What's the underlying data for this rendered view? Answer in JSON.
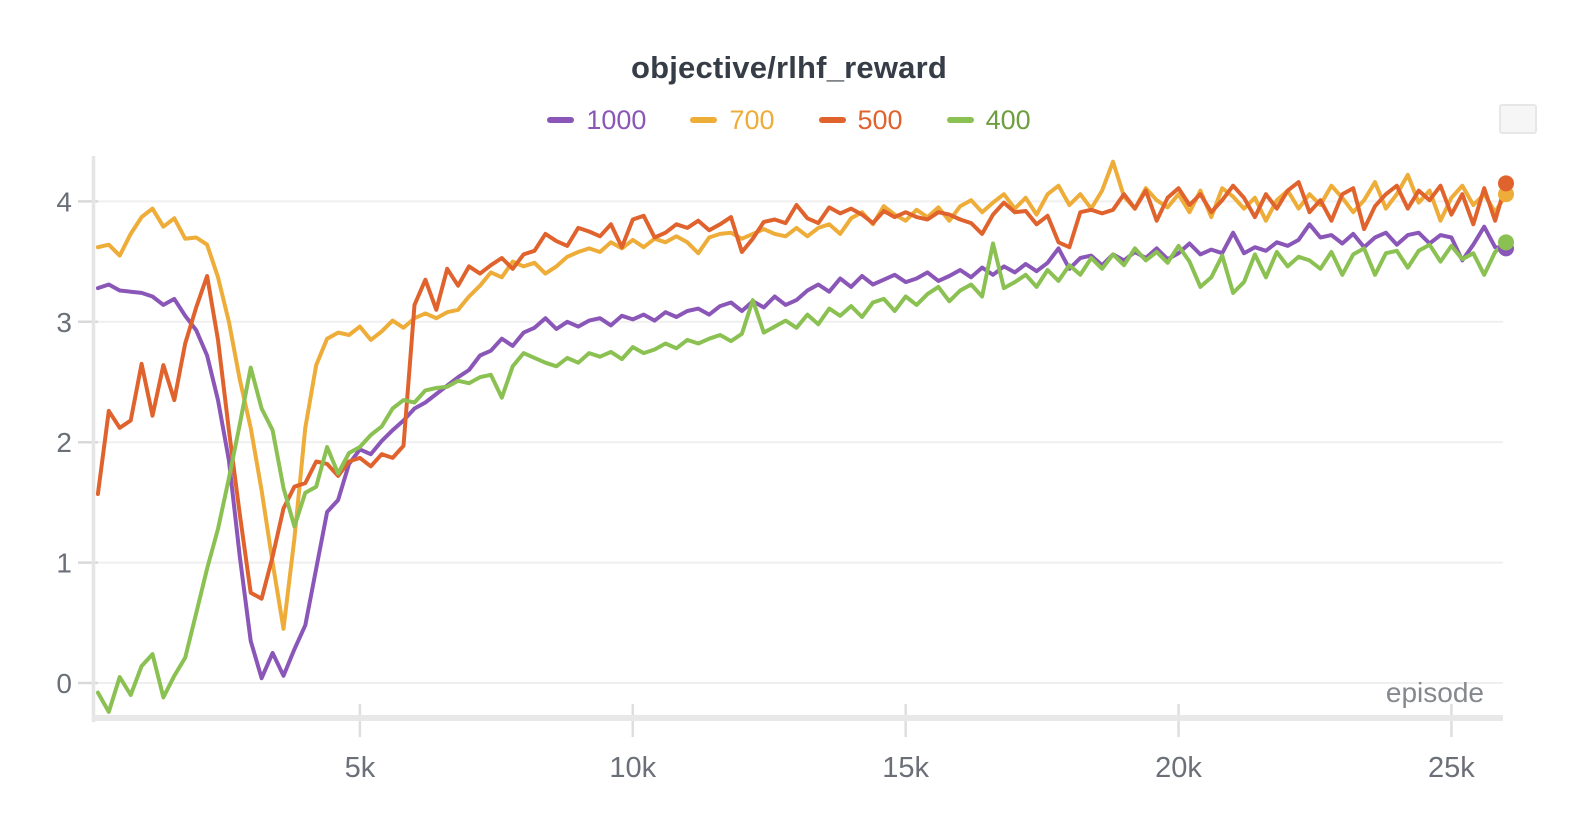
{
  "chart_data": {
    "type": "line",
    "title": "objective/rlhf_reward",
    "xlabel": "episode",
    "ylabel": "",
    "grid": true,
    "legend_position": "top-center",
    "x_axis": {
      "range": [
        0,
        26000
      ],
      "ticks": [
        {
          "value": 5000,
          "label": "5k"
        },
        {
          "value": 10000,
          "label": "10k"
        },
        {
          "value": 15000,
          "label": "15k"
        },
        {
          "value": 20000,
          "label": "20k"
        },
        {
          "value": 25000,
          "label": "25k"
        }
      ]
    },
    "y_axis": {
      "range": [
        -0.35,
        4.45
      ],
      "ticks": [
        {
          "value": 0,
          "label": "0"
        },
        {
          "value": 1,
          "label": "1"
        },
        {
          "value": 2,
          "label": "2"
        },
        {
          "value": 3,
          "label": "3"
        },
        {
          "value": 4,
          "label": "4"
        }
      ]
    },
    "x_start": 200,
    "x_step": 200,
    "series": [
      {
        "name": "1000",
        "color": "#8a57b8",
        "label_color": "#8a57b8",
        "end_dot": true,
        "values": [
          3.28,
          3.31,
          3.26,
          3.25,
          3.24,
          3.21,
          3.14,
          3.19,
          3.05,
          2.93,
          2.72,
          2.35,
          1.85,
          1.05,
          0.35,
          0.04,
          0.25,
          0.06,
          0.28,
          0.48,
          0.95,
          1.42,
          1.52,
          1.82,
          1.94,
          1.9,
          2.01,
          2.1,
          2.18,
          2.28,
          2.33,
          2.4,
          2.47,
          2.54,
          2.6,
          2.72,
          2.76,
          2.86,
          2.8,
          2.91,
          2.95,
          3.03,
          2.94,
          3.0,
          2.96,
          3.01,
          3.03,
          2.97,
          3.05,
          3.02,
          3.06,
          3.01,
          3.08,
          3.04,
          3.09,
          3.11,
          3.06,
          3.13,
          3.16,
          3.09,
          3.17,
          3.12,
          3.21,
          3.14,
          3.18,
          3.26,
          3.31,
          3.25,
          3.36,
          3.29,
          3.38,
          3.31,
          3.35,
          3.39,
          3.33,
          3.36,
          3.41,
          3.34,
          3.38,
          3.43,
          3.37,
          3.45,
          3.39,
          3.46,
          3.41,
          3.48,
          3.42,
          3.49,
          3.61,
          3.44,
          3.53,
          3.55,
          3.47,
          3.56,
          3.51,
          3.58,
          3.53,
          3.61,
          3.52,
          3.57,
          3.65,
          3.56,
          3.6,
          3.57,
          3.74,
          3.57,
          3.62,
          3.59,
          3.66,
          3.63,
          3.68,
          3.81,
          3.7,
          3.72,
          3.65,
          3.73,
          3.62,
          3.7,
          3.74,
          3.64,
          3.72,
          3.74,
          3.65,
          3.72,
          3.7,
          3.51,
          3.64,
          3.79,
          3.62,
          3.61
        ]
      },
      {
        "name": "700",
        "color": "#eeac38",
        "label_color": "#eeac38",
        "end_dot": true,
        "values": [
          3.62,
          3.64,
          3.55,
          3.73,
          3.87,
          3.94,
          3.79,
          3.86,
          3.69,
          3.7,
          3.64,
          3.37,
          3.0,
          2.52,
          2.12,
          1.6,
          1.0,
          0.45,
          1.2,
          2.12,
          2.64,
          2.86,
          2.91,
          2.89,
          2.96,
          2.85,
          2.92,
          3.01,
          2.95,
          3.03,
          3.07,
          3.03,
          3.08,
          3.1,
          3.21,
          3.3,
          3.41,
          3.37,
          3.5,
          3.46,
          3.49,
          3.4,
          3.46,
          3.54,
          3.58,
          3.61,
          3.58,
          3.66,
          3.61,
          3.68,
          3.62,
          3.69,
          3.66,
          3.71,
          3.66,
          3.57,
          3.7,
          3.73,
          3.74,
          3.69,
          3.73,
          3.77,
          3.73,
          3.71,
          3.78,
          3.71,
          3.78,
          3.81,
          3.73,
          3.86,
          3.91,
          3.81,
          3.96,
          3.89,
          3.84,
          3.93,
          3.87,
          3.95,
          3.84,
          3.96,
          4.01,
          3.91,
          3.99,
          4.06,
          3.94,
          4.03,
          3.89,
          4.06,
          4.13,
          3.97,
          4.06,
          3.94,
          4.09,
          4.33,
          4.04,
          3.94,
          4.11,
          4.01,
          3.95,
          4.06,
          3.91,
          4.09,
          3.87,
          4.11,
          4.04,
          3.94,
          4.03,
          3.84,
          4.01,
          4.09,
          3.94,
          4.06,
          3.97,
          4.13,
          4.03,
          3.91,
          4.01,
          4.16,
          3.94,
          4.06,
          4.22,
          3.99,
          4.09,
          3.84,
          4.03,
          4.13,
          3.97,
          4.06,
          3.91,
          4.06
        ]
      },
      {
        "name": "500",
        "color": "#e0632e",
        "label_color": "#e0632e",
        "end_dot": true,
        "values": [
          1.57,
          2.26,
          2.12,
          2.18,
          2.65,
          2.22,
          2.64,
          2.35,
          2.82,
          3.12,
          3.38,
          2.85,
          2.1,
          1.4,
          0.75,
          0.7,
          1.05,
          1.45,
          1.63,
          1.66,
          1.84,
          1.82,
          1.72,
          1.84,
          1.87,
          1.8,
          1.9,
          1.87,
          1.97,
          3.14,
          3.35,
          3.1,
          3.44,
          3.3,
          3.46,
          3.4,
          3.47,
          3.53,
          3.44,
          3.56,
          3.59,
          3.73,
          3.67,
          3.63,
          3.78,
          3.75,
          3.71,
          3.81,
          3.62,
          3.85,
          3.88,
          3.7,
          3.74,
          3.81,
          3.78,
          3.84,
          3.76,
          3.81,
          3.87,
          3.58,
          3.69,
          3.83,
          3.85,
          3.82,
          3.97,
          3.86,
          3.82,
          3.95,
          3.9,
          3.94,
          3.89,
          3.82,
          3.92,
          3.87,
          3.91,
          3.87,
          3.85,
          3.91,
          3.89,
          3.85,
          3.82,
          3.73,
          3.89,
          3.99,
          3.91,
          3.92,
          3.81,
          3.88,
          3.66,
          3.62,
          3.91,
          3.93,
          3.9,
          3.93,
          4.06,
          3.94,
          4.09,
          3.84,
          4.03,
          4.11,
          3.97,
          4.06,
          3.91,
          4.01,
          4.13,
          4.03,
          3.87,
          4.06,
          3.94,
          4.09,
          4.16,
          3.91,
          4.01,
          3.84,
          4.06,
          4.11,
          3.77,
          3.96,
          4.06,
          4.13,
          3.94,
          4.09,
          4.01,
          4.13,
          3.89,
          4.06,
          3.81,
          4.11,
          3.84,
          4.15
        ]
      },
      {
        "name": "400",
        "color": "#8bc152",
        "label_color": "#6f9e3f",
        "end_dot": true,
        "values": [
          -0.08,
          -0.24,
          0.05,
          -0.1,
          0.14,
          0.24,
          -0.12,
          0.06,
          0.21,
          0.58,
          0.95,
          1.28,
          1.7,
          2.15,
          2.62,
          2.28,
          2.1,
          1.62,
          1.3,
          1.58,
          1.63,
          1.96,
          1.74,
          1.91,
          1.96,
          2.06,
          2.13,
          2.28,
          2.35,
          2.33,
          2.43,
          2.45,
          2.46,
          2.51,
          2.49,
          2.54,
          2.56,
          2.37,
          2.63,
          2.74,
          2.7,
          2.66,
          2.63,
          2.7,
          2.66,
          2.74,
          2.71,
          2.75,
          2.69,
          2.79,
          2.74,
          2.77,
          2.82,
          2.78,
          2.85,
          2.82,
          2.86,
          2.89,
          2.84,
          2.9,
          3.18,
          2.91,
          2.96,
          3.01,
          2.95,
          3.06,
          2.98,
          3.11,
          3.05,
          3.13,
          3.04,
          3.16,
          3.19,
          3.09,
          3.21,
          3.14,
          3.23,
          3.29,
          3.17,
          3.26,
          3.31,
          3.21,
          3.65,
          3.28,
          3.33,
          3.39,
          3.29,
          3.43,
          3.34,
          3.47,
          3.39,
          3.53,
          3.44,
          3.56,
          3.47,
          3.61,
          3.51,
          3.58,
          3.49,
          3.63,
          3.5,
          3.29,
          3.37,
          3.55,
          3.24,
          3.33,
          3.56,
          3.37,
          3.58,
          3.46,
          3.54,
          3.51,
          3.44,
          3.58,
          3.39,
          3.56,
          3.61,
          3.39,
          3.57,
          3.59,
          3.45,
          3.59,
          3.64,
          3.5,
          3.63,
          3.52,
          3.57,
          3.39,
          3.58,
          3.66
        ]
      }
    ]
  },
  "ui": {
    "background_color": "#ffffff",
    "title_color": "#363d47",
    "tick_label_color": "#6b6f78",
    "axis_label_color": "#85888d",
    "gridline_color": "#efefef",
    "axis_line_color": "#e8e8e8",
    "corner_box_color": "#f6f6f6"
  }
}
